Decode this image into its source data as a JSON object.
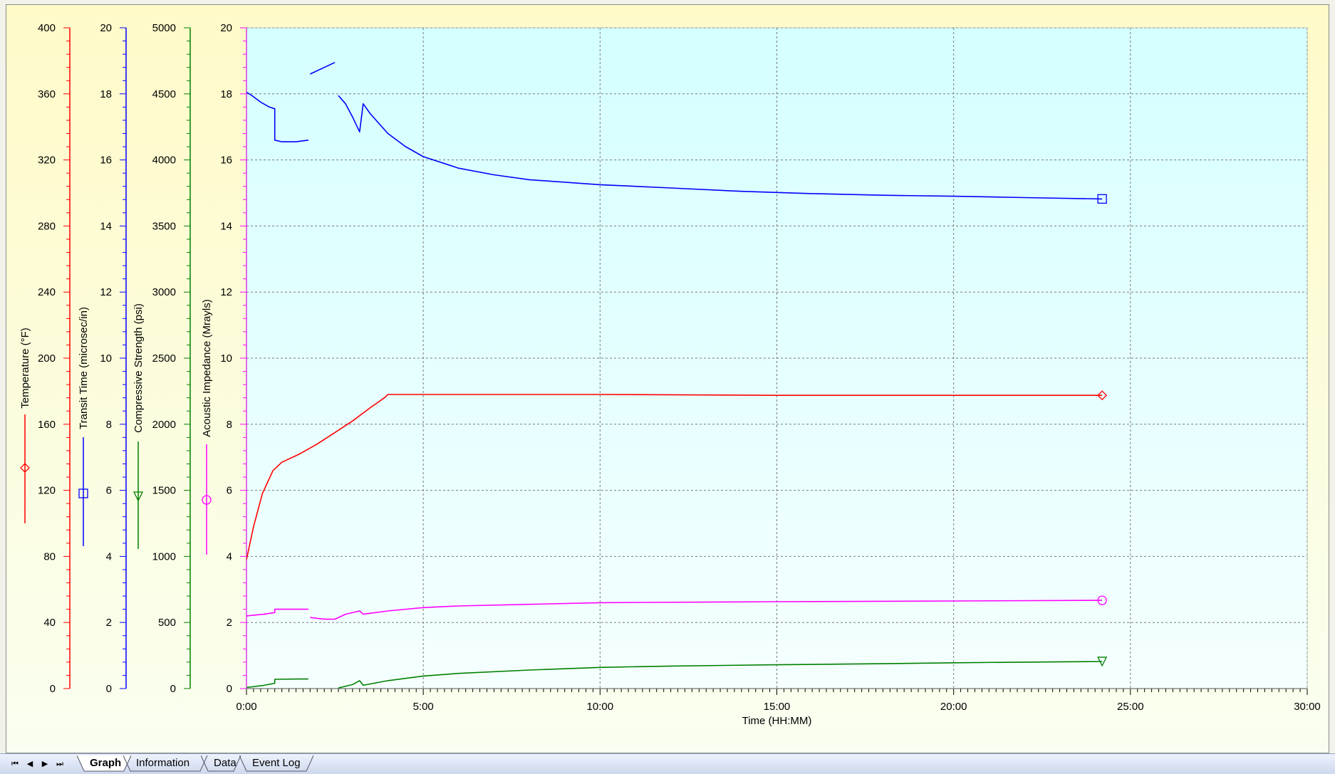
{
  "colors": {
    "temperature": "#ff0000",
    "transit": "#0000ff",
    "strength": "#008000",
    "impedance": "#ff00ff",
    "plot_top": "#d5ffff",
    "plot_bottom": "#f5ffff",
    "outer_top": "#fffac8",
    "outer_bottom": "#f9fff0",
    "grid": "#7a7a7a"
  },
  "chart_data": {
    "type": "line",
    "title": "",
    "x_axis": {
      "label": "Time (HH:MM)",
      "range_hours": [
        0,
        30
      ],
      "tick_labels": [
        "0:00",
        "5:00",
        "10:00",
        "15:00",
        "20:00",
        "25:00",
        "30:00"
      ]
    },
    "axes": [
      {
        "id": "temperature",
        "label": "Temperature (°F)",
        "range": [
          0,
          400
        ],
        "ticks": [
          "0",
          "40",
          "80",
          "120",
          "160",
          "200",
          "240",
          "280",
          "320",
          "360",
          "400"
        ],
        "marker": "diamond"
      },
      {
        "id": "transit",
        "label": "Transit Time (microsec/in)",
        "range": [
          0,
          20
        ],
        "ticks": [
          "0",
          "2",
          "4",
          "6",
          "8",
          "10",
          "12",
          "14",
          "16",
          "18",
          "20"
        ],
        "marker": "square"
      },
      {
        "id": "strength",
        "label": "Compressive Strength (psi)",
        "range": [
          0,
          5000
        ],
        "ticks": [
          "0",
          "500",
          "1000",
          "1500",
          "2000",
          "2500",
          "3000",
          "3500",
          "4000",
          "4500",
          "5000"
        ],
        "marker": "triangle"
      },
      {
        "id": "impedance",
        "label": "Acoustic Impedance (Mrayls)",
        "range": [
          0,
          20
        ],
        "ticks": [
          "0",
          "2",
          "4",
          "6",
          "8",
          "10",
          "12",
          "14",
          "16",
          "18",
          "20"
        ],
        "marker": "circle"
      }
    ],
    "grid": true,
    "series": [
      {
        "axis": "temperature",
        "marker": "diamond",
        "segments": [
          [
            [
              0,
              78
            ],
            [
              0.2,
              98
            ],
            [
              0.45,
              118
            ],
            [
              0.75,
              132
            ],
            [
              1.0,
              137
            ],
            [
              1.5,
              142
            ],
            [
              2.0,
              148
            ],
            [
              2.5,
              155
            ],
            [
              3.0,
              162
            ],
            [
              3.5,
              170
            ],
            [
              3.9,
              176
            ],
            [
              4.0,
              178
            ],
            [
              6,
              178
            ],
            [
              10,
              178
            ],
            [
              15,
              177.5
            ],
            [
              20,
              177.5
            ],
            [
              24.2,
              177.5
            ]
          ]
        ]
      },
      {
        "axis": "transit",
        "marker": "square",
        "segments": [
          [
            [
              0,
              18.05
            ],
            [
              0.15,
              17.95
            ],
            [
              0.4,
              17.75
            ],
            [
              0.65,
              17.6
            ],
            [
              0.8,
              17.55
            ],
            [
              0.8,
              16.6
            ],
            [
              1.0,
              16.55
            ],
            [
              1.4,
              16.55
            ],
            [
              1.75,
              16.6
            ]
          ],
          [
            [
              1.8,
              18.6
            ],
            [
              2.2,
              18.8
            ],
            [
              2.5,
              18.95
            ]
          ],
          [
            [
              2.6,
              17.95
            ],
            [
              2.8,
              17.7
            ],
            [
              3.0,
              17.3
            ],
            [
              3.2,
              16.85
            ],
            [
              3.3,
              17.7
            ],
            [
              3.5,
              17.4
            ],
            [
              4.0,
              16.8
            ],
            [
              4.5,
              16.4
            ],
            [
              5.0,
              16.1
            ],
            [
              6.0,
              15.75
            ],
            [
              7.0,
              15.55
            ],
            [
              8.0,
              15.4
            ],
            [
              10.0,
              15.25
            ],
            [
              12.0,
              15.15
            ],
            [
              14.0,
              15.05
            ],
            [
              16.0,
              14.98
            ],
            [
              18.0,
              14.93
            ],
            [
              20.0,
              14.9
            ],
            [
              22.0,
              14.86
            ],
            [
              24.2,
              14.82
            ]
          ]
        ]
      },
      {
        "axis": "strength",
        "marker": "triangle",
        "segments": [
          [
            [
              0,
              8
            ],
            [
              0.5,
              25
            ],
            [
              0.8,
              40
            ],
            [
              0.8,
              70
            ],
            [
              1.5,
              72
            ],
            [
              1.75,
              72
            ]
          ],
          [
            [
              2.6,
              5
            ],
            [
              3.0,
              30
            ],
            [
              3.2,
              60
            ],
            [
              3.3,
              25
            ],
            [
              4.0,
              60
            ],
            [
              5.0,
              95
            ],
            [
              6.0,
              115
            ],
            [
              8.0,
              140
            ],
            [
              10.0,
              160
            ],
            [
              12.0,
              170
            ],
            [
              15.0,
              180
            ],
            [
              18.0,
              188
            ],
            [
              20.0,
              195
            ],
            [
              22.0,
              200
            ],
            [
              24.2,
              205
            ]
          ]
        ]
      },
      {
        "axis": "impedance",
        "marker": "circle",
        "segments": [
          [
            [
              0,
              2.2
            ],
            [
              0.5,
              2.25
            ],
            [
              0.8,
              2.3
            ],
            [
              0.8,
              2.4
            ],
            [
              1.75,
              2.4
            ]
          ],
          [
            [
              1.8,
              2.15
            ],
            [
              2.2,
              2.1
            ],
            [
              2.5,
              2.1
            ],
            [
              2.8,
              2.25
            ],
            [
              3.2,
              2.35
            ],
            [
              3.3,
              2.25
            ],
            [
              4.0,
              2.35
            ],
            [
              5.0,
              2.45
            ],
            [
              6.0,
              2.5
            ],
            [
              8.0,
              2.55
            ],
            [
              10.0,
              2.6
            ],
            [
              15.0,
              2.63
            ],
            [
              20.0,
              2.65
            ],
            [
              24.2,
              2.67
            ]
          ]
        ]
      }
    ]
  },
  "tabs": [
    {
      "label": "Graph",
      "active": true
    },
    {
      "label": "Information",
      "active": false
    },
    {
      "label": "Data",
      "active": false
    },
    {
      "label": "Event Log",
      "active": false
    }
  ],
  "nav": [
    "⏮",
    "◀",
    "▶",
    "⏭"
  ]
}
